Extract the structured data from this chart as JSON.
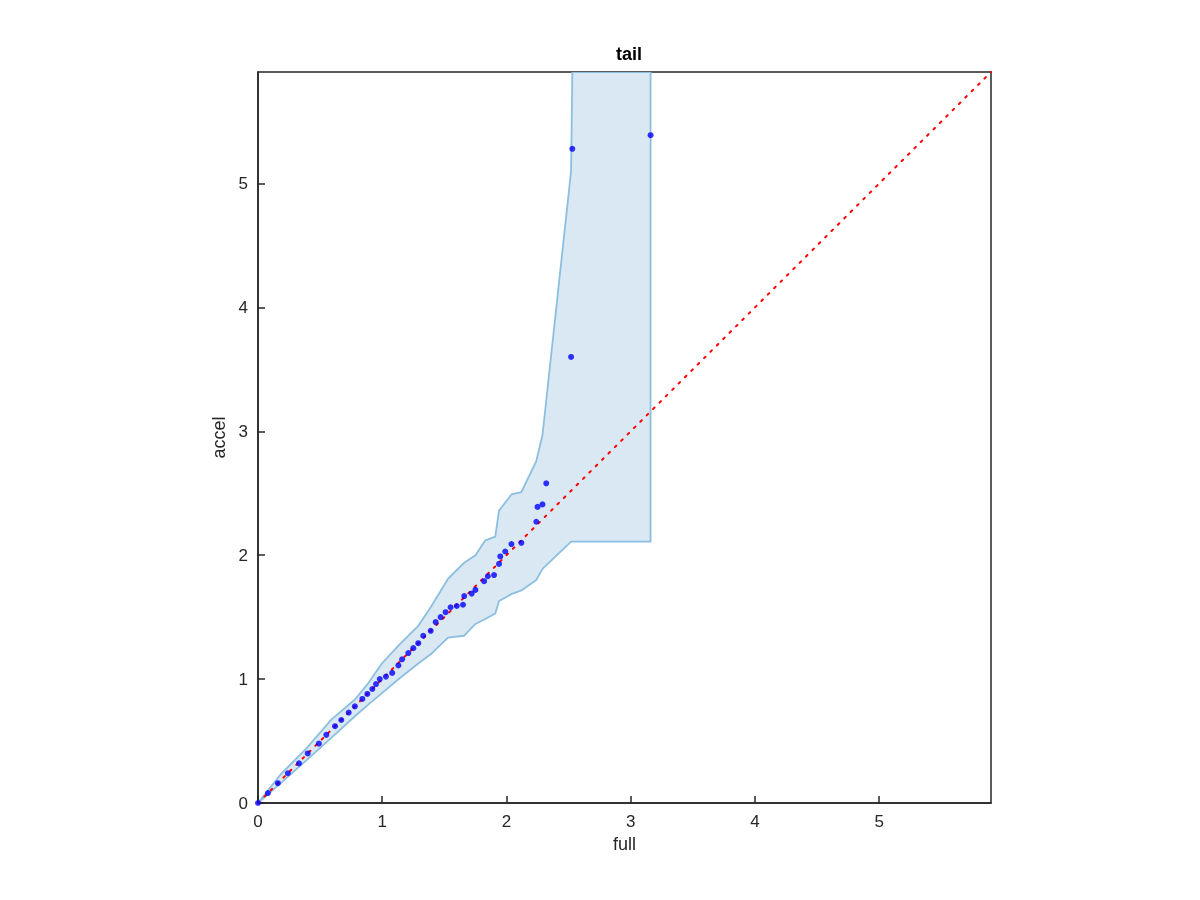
{
  "chart_data": {
    "type": "scatter",
    "title": "tail",
    "xlabel": "full",
    "ylabel": "accel",
    "xlim": [
      0,
      5.9
    ],
    "ylim": [
      0,
      5.9
    ],
    "xticks": [
      0,
      1,
      2,
      3,
      4,
      5
    ],
    "yticks": [
      0,
      1,
      2,
      3,
      4,
      5
    ],
    "grid": false,
    "marker": "circle",
    "series": [
      {
        "color": "#0000ff",
        "x": [
          0,
          0.08,
          0.16,
          0.24,
          0.33,
          0.4,
          0.49,
          0.55,
          0.62,
          0.67,
          0.73,
          0.78,
          0.84,
          0.88,
          0.92,
          0.95,
          0.98,
          1.03,
          1.08,
          1.13,
          1.16,
          1.21,
          1.25,
          1.29,
          1.33,
          1.39,
          1.43,
          1.47,
          1.51,
          1.55,
          1.6,
          1.65,
          1.66,
          1.72,
          1.75,
          1.82,
          1.85,
          1.9,
          1.94,
          1.95,
          1.99,
          2.04,
          2.12,
          2.24,
          2.25,
          2.29,
          2.32,
          2.52,
          2.53,
          3.16
        ],
        "values": [
          0,
          0.08,
          0.16,
          0.24,
          0.32,
          0.4,
          0.48,
          0.55,
          0.62,
          0.67,
          0.73,
          0.78,
          0.84,
          0.88,
          0.92,
          0.96,
          1.0,
          1.02,
          1.05,
          1.11,
          1.16,
          1.21,
          1.25,
          1.29,
          1.35,
          1.39,
          1.46,
          1.5,
          1.54,
          1.58,
          1.59,
          1.6,
          1.67,
          1.69,
          1.72,
          1.79,
          1.83,
          1.84,
          1.93,
          1.99,
          2.03,
          2.09,
          2.1,
          2.27,
          2.39,
          2.41,
          2.58,
          3.6,
          5.28,
          5.39
        ]
      },
      {
        "type": "line",
        "color": "#ff0000",
        "line_style": "dotted",
        "marker": "none",
        "x": [
          0,
          0.19,
          0.38,
          0.59,
          0.78,
          0.89,
          1.0,
          1.14,
          1.29,
          1.39,
          1.53,
          1.66,
          1.75,
          1.83,
          1.91,
          1.94,
          2.04,
          2.12,
          2.24,
          2.29,
          2.52,
          2.53,
          3.16,
          5.9
        ],
        "values": [
          0,
          0.19,
          0.38,
          0.59,
          0.78,
          0.89,
          1.0,
          1.14,
          1.29,
          1.39,
          1.53,
          1.66,
          1.75,
          1.83,
          1.91,
          1.94,
          2.04,
          2.12,
          2.24,
          2.29,
          2.52,
          2.53,
          3.16,
          5.9
        ],
        "lower": [
          0,
          0.166,
          0.336,
          0.526,
          0.7,
          0.796,
          0.889,
          1.007,
          1.126,
          1.2,
          1.335,
          1.35,
          1.445,
          1.485,
          1.53,
          1.63,
          1.686,
          1.716,
          1.8,
          1.89,
          2.11,
          2.11,
          2.11,
          null
        ],
        "upper": [
          0,
          0.24,
          0.43,
          0.673,
          0.835,
          0.97,
          1.13,
          1.28,
          1.43,
          1.58,
          1.81,
          1.94,
          2.0,
          2.12,
          2.15,
          2.36,
          2.49,
          2.51,
          2.76,
          2.97,
          5.1,
          5.9,
          5.9,
          null
        ]
      }
    ]
  }
}
